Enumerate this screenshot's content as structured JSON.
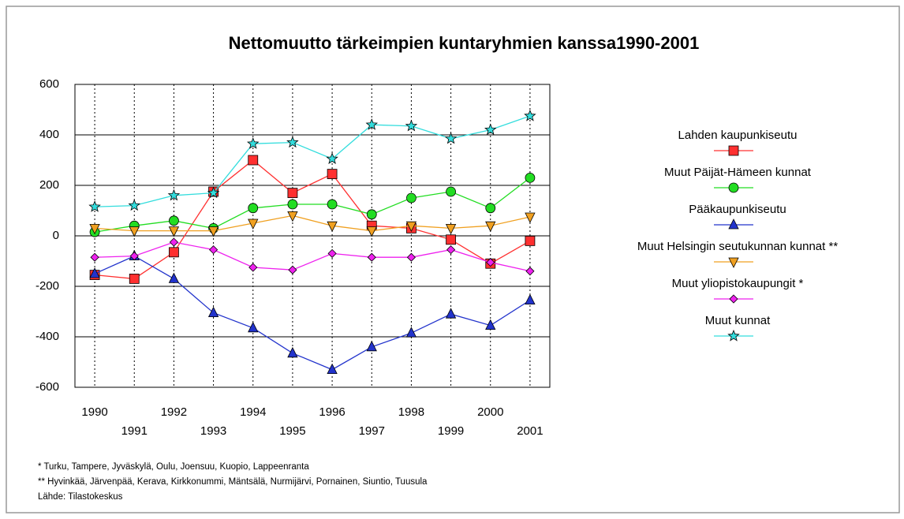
{
  "chart_data": {
    "type": "line",
    "title": "Nettomuutto tärkeimpien kuntaryhmien kanssa1990-2001",
    "categories": [
      "1990",
      "1991",
      "1992",
      "1993",
      "1994",
      "1995",
      "1996",
      "1997",
      "1998",
      "1999",
      "2000",
      "2001"
    ],
    "ylim": [
      -600,
      600
    ],
    "yticks": [
      -600,
      -400,
      -200,
      0,
      200,
      400,
      600
    ],
    "grid": true,
    "legend": "right",
    "series": [
      {
        "name": "Lahden kaupunkiseutu",
        "color": "#ff3030",
        "marker": "square",
        "values": [
          -155,
          -170,
          -65,
          175,
          300,
          170,
          245,
          40,
          30,
          -15,
          -110,
          -20
        ]
      },
      {
        "name": "Muut Päijät-Hämeen kunnat",
        "color": "#22dd22",
        "marker": "circle",
        "values": [
          15,
          40,
          60,
          30,
          110,
          125,
          125,
          85,
          150,
          175,
          110,
          230
        ]
      },
      {
        "name": "Pääkaupunkiseutu",
        "color": "#2233cc",
        "marker": "triangle-up",
        "values": [
          -150,
          -80,
          -170,
          -305,
          -365,
          -465,
          -530,
          -440,
          -385,
          -310,
          -355,
          -255
        ]
      },
      {
        "name": "Muut Helsingin seutukunnan kunnat **",
        "color": "#f0a020",
        "marker": "triangle-down",
        "values": [
          30,
          20,
          20,
          20,
          50,
          80,
          40,
          20,
          40,
          30,
          40,
          75
        ]
      },
      {
        "name": "Muut yliopistokaupungit *",
        "color": "#ee22ee",
        "marker": "diamond",
        "values": [
          -85,
          -80,
          -25,
          -55,
          -125,
          -135,
          -70,
          -85,
          -85,
          -55,
          -105,
          -140
        ]
      },
      {
        "name": "Muut kunnat",
        "color": "#33dddd",
        "marker": "star",
        "values": [
          115,
          120,
          160,
          170,
          365,
          370,
          305,
          440,
          435,
          385,
          420,
          475
        ]
      }
    ],
    "notes": [
      "* Turku, Tampere, Jyväskylä, Oulu, Joensuu, Kuopio, Lappeenranta",
      "** Hyvinkää, Järvenpää, Kerava, Kirkkonummi, Mäntsälä, Nurmijärvi, Pornainen, Siuntio, Tuusula",
      "Lähde: Tilastokeskus"
    ]
  }
}
